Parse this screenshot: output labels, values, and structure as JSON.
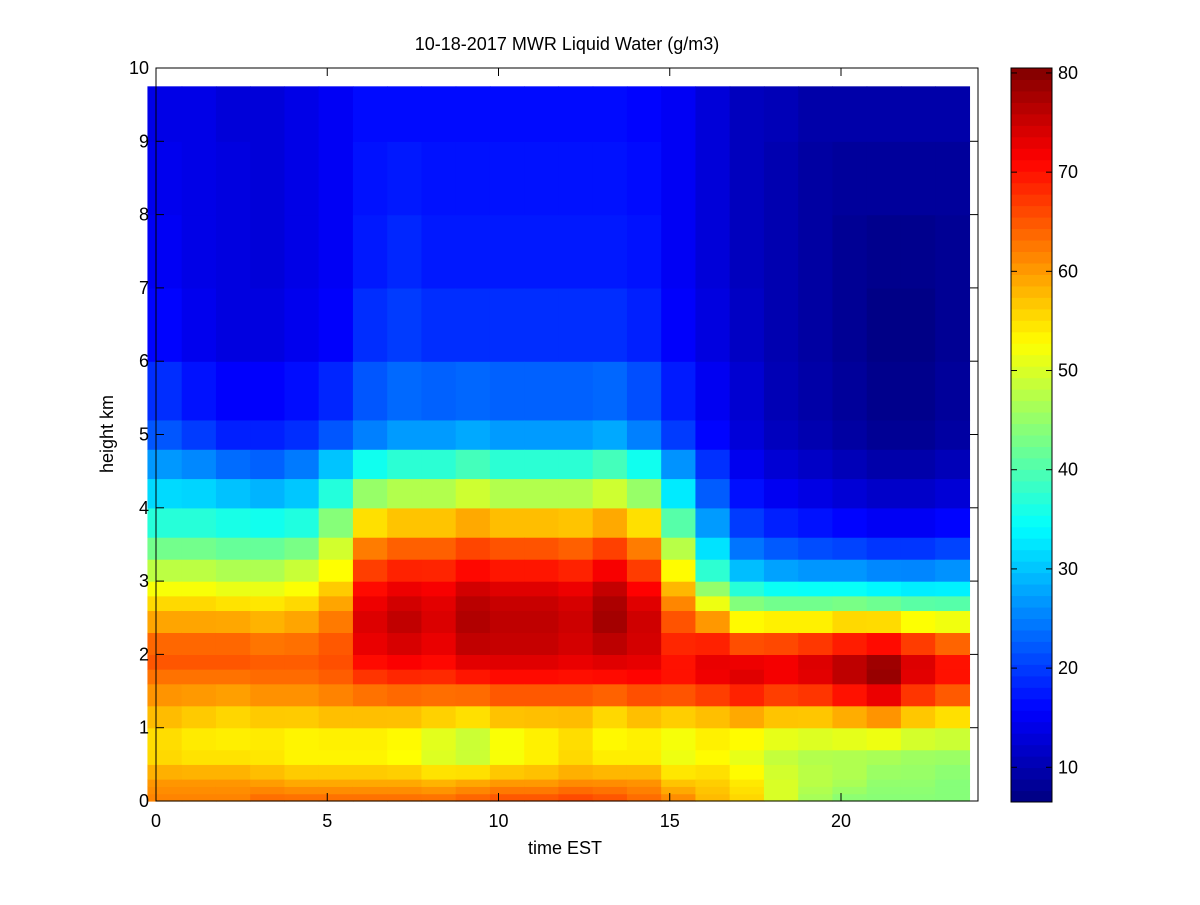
{
  "chart_data": {
    "type": "heatmap",
    "title": "10-18-2017 MWR Liquid Water (g/m3)",
    "xlabel": "time EST",
    "ylabel": "height km",
    "xlim": [
      0,
      24
    ],
    "ylim": [
      0,
      10
    ],
    "x_ticks": [
      0,
      5,
      10,
      15,
      20
    ],
    "y_ticks": [
      0,
      1,
      2,
      3,
      4,
      5,
      6,
      7,
      8,
      9,
      10
    ],
    "colorbar": {
      "range": [
        6.5,
        80.5
      ],
      "ticks": [
        10,
        20,
        30,
        40,
        50,
        60,
        70,
        80
      ],
      "colormap": "jet"
    },
    "x": [
      0.25,
      1.25,
      2.25,
      3.25,
      4.25,
      5.25,
      6.25,
      7.25,
      8.25,
      9.25,
      10.25,
      11.25,
      12.25,
      13.25,
      14.25,
      15.25,
      16.25,
      17.25,
      18.25,
      19.25,
      20.25,
      21.25,
      22.25,
      23.25
    ],
    "y_levels": [
      0,
      0.1,
      0.2,
      0.3,
      0.5,
      0.7,
      1.0,
      1.3,
      1.6,
      1.8,
      2.0,
      2.3,
      2.6,
      2.8,
      3.0,
      3.3,
      3.6,
      4.0,
      4.4,
      4.8,
      5.2,
      6.0,
      7.0,
      8.0,
      9.0,
      9.75
    ],
    "control_heights": [
      0,
      0.3,
      0.7,
      1.2,
      1.6,
      2.0,
      2.4,
      2.8,
      3.2,
      3.6,
      4.0,
      4.5,
      5.0,
      6.0,
      7.0,
      8.0,
      9.0,
      9.75
    ],
    "control_values": [
      [
        62,
        60,
        54,
        58,
        62,
        66,
        60,
        54,
        47,
        40,
        34,
        28,
        22,
        17,
        15,
        15,
        14,
        14
      ],
      [
        62,
        60,
        53,
        57,
        62,
        66,
        60,
        54,
        47,
        40,
        34,
        27,
        20,
        15,
        14,
        14,
        14,
        14
      ],
      [
        62,
        60,
        53,
        56,
        62,
        66,
        60,
        53,
        46,
        39,
        33,
        25,
        18,
        14,
        13,
        14,
        13,
        13
      ],
      [
        64,
        59,
        53,
        57,
        63,
        65,
        59,
        53,
        46,
        39,
        32,
        24,
        18,
        14,
        13,
        13,
        13,
        13
      ],
      [
        64,
        58,
        52,
        57,
        63,
        65,
        60,
        54,
        48,
        40,
        33,
        26,
        19,
        15,
        14,
        14,
        14,
        14
      ],
      [
        64,
        58,
        52,
        58,
        64,
        66,
        63,
        58,
        52,
        48,
        40,
        32,
        22,
        16,
        15,
        15,
        15,
        15
      ],
      [
        64,
        58,
        52,
        58,
        66,
        72,
        74,
        72,
        66,
        60,
        50,
        38,
        25,
        20,
        18,
        17,
        17,
        16
      ],
      [
        64,
        58,
        51,
        58,
        67,
        73,
        76,
        74,
        68,
        62,
        52,
        40,
        27,
        21,
        19,
        18,
        17,
        16
      ],
      [
        64,
        57,
        48,
        57,
        67,
        72,
        74,
        73,
        68,
        62,
        52,
        40,
        27,
        20,
        18,
        17,
        17,
        16
      ],
      [
        65,
        58,
        46,
        56,
        68,
        75,
        77,
        76,
        70,
        64,
        54,
        42,
        28,
        20,
        18,
        17,
        17,
        16
      ],
      [
        66,
        59,
        50,
        58,
        69,
        75,
        76,
        75,
        69,
        63,
        52,
        40,
        27,
        20,
        18,
        17,
        17,
        16
      ],
      [
        66,
        59,
        52,
        58,
        69,
        75,
        76,
        75,
        69,
        63,
        52,
        40,
        27,
        20,
        18,
        17,
        17,
        16
      ],
      [
        67,
        60,
        54,
        58,
        69,
        74,
        75,
        74,
        68,
        62,
        52,
        40,
        27,
        20,
        18,
        17,
        17,
        16
      ],
      [
        66,
        60,
        52,
        56,
        69,
        75,
        78,
        77,
        71,
        64,
        54,
        42,
        28,
        20,
        18,
        17,
        17,
        16
      ],
      [
        64,
        60,
        52,
        58,
        70,
        74,
        75,
        73,
        66,
        60,
        50,
        38,
        25,
        19,
        17,
        17,
        16,
        16
      ],
      [
        62,
        56,
        50,
        57,
        70,
        70,
        66,
        60,
        52,
        45,
        36,
        28,
        20,
        16,
        15,
        15,
        15,
        15
      ],
      [
        58,
        56,
        52,
        58,
        72,
        73,
        62,
        48,
        36,
        30,
        24,
        20,
        16,
        14,
        13,
        13,
        13,
        13
      ],
      [
        56,
        54,
        50,
        60,
        74,
        72,
        55,
        40,
        28,
        22,
        18,
        15,
        13,
        12,
        11,
        11,
        11,
        11
      ],
      [
        50,
        50,
        48,
        58,
        72,
        72,
        56,
        38,
        26,
        20,
        16,
        13,
        11,
        10,
        10,
        10,
        10,
        11
      ],
      [
        46,
        48,
        47,
        58,
        73,
        74,
        56,
        38,
        25,
        19,
        15,
        12,
        10,
        9,
        9,
        9,
        9,
        10
      ],
      [
        44,
        47,
        47,
        60,
        76,
        76,
        58,
        38,
        25,
        18,
        14,
        11,
        9,
        8,
        8,
        8,
        9,
        10
      ],
      [
        44,
        45,
        47,
        62,
        79,
        78,
        58,
        37,
        24,
        17,
        13,
        10,
        8,
        7,
        7,
        8,
        9,
        10
      ],
      [
        44,
        45,
        46,
        58,
        73,
        74,
        55,
        36,
        24,
        17,
        13,
        10,
        8,
        7,
        7,
        8,
        9,
        10
      ],
      [
        44,
        44,
        46,
        56,
        70,
        70,
        54,
        36,
        25,
        18,
        14,
        11,
        9,
        8,
        8,
        8,
        9,
        10
      ]
    ]
  }
}
